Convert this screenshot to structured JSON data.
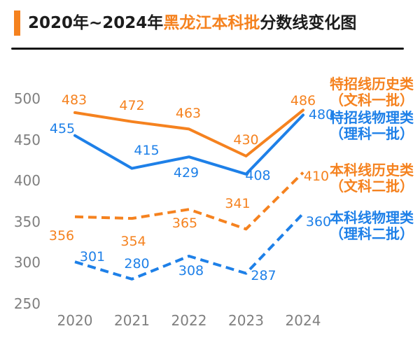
{
  "header": {
    "title_prefix": "2020年~2024年",
    "title_highlight": "黑龙江本科批",
    "title_suffix": "分数线变化图",
    "accent_color": "#F5821F"
  },
  "chart_data": {
    "type": "line",
    "title": "2020年~2024年黑龙江本科批分数线变化图",
    "x": [
      "2020",
      "2021",
      "2022",
      "2023",
      "2024"
    ],
    "y_ticks": [
      250,
      300,
      350,
      400,
      450,
      500
    ],
    "ylim": [
      250,
      500
    ],
    "grid": false,
    "axis_color": "#7f7f7f",
    "legend_position": "right",
    "series": [
      {
        "name": "特招线历史类",
        "subtitle": "（文科一批）",
        "color": "#F5821F",
        "style": "solid",
        "values": [
          483,
          472,
          463,
          430,
          486
        ],
        "label_offsets": [
          [
            -1,
            -18
          ],
          [
            0,
            -23
          ],
          [
            -1,
            -22
          ],
          [
            0,
            -23
          ],
          [
            0,
            -13
          ]
        ]
      },
      {
        "name": "特招线物理类",
        "subtitle": "（理科一批）",
        "color": "#1E80E8",
        "style": "solid",
        "values": [
          455,
          415,
          429,
          408,
          480
        ],
        "label_offsets": [
          [
            -18,
            -10
          ],
          [
            21,
            -26
          ],
          [
            -4,
            23
          ],
          [
            17,
            2
          ],
          [
            26,
            0
          ]
        ]
      },
      {
        "name": "本科线历史类",
        "subtitle": "（文科二批）",
        "color": "#F5821F",
        "style": "dashed",
        "values": [
          356,
          354,
          365,
          341,
          410
        ],
        "label_offsets": [
          [
            -19,
            27
          ],
          [
            2,
            33
          ],
          [
            -6,
            20
          ],
          [
            -12,
            -36
          ],
          [
            19,
            6
          ]
        ]
      },
      {
        "name": "本科线物理类",
        "subtitle": "（理科二批）",
        "color": "#1E80E8",
        "style": "dashed",
        "values": [
          301,
          280,
          308,
          287,
          360
        ],
        "label_offsets": [
          [
            25,
            -7
          ],
          [
            7,
            -22
          ],
          [
            3,
            21
          ],
          [
            25,
            3
          ],
          [
            22,
            12
          ]
        ]
      }
    ]
  }
}
